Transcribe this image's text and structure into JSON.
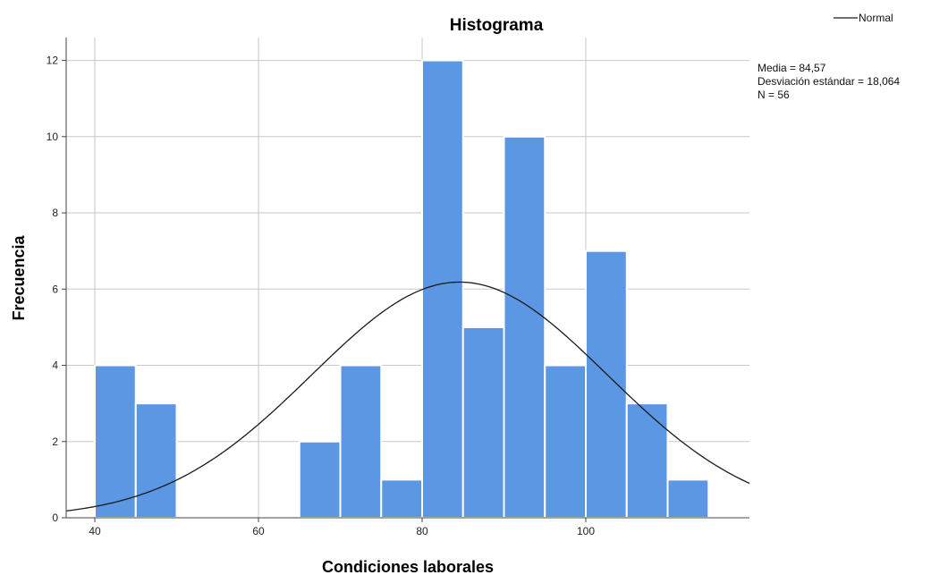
{
  "chart_data": {
    "type": "bar",
    "title": "Histograma",
    "xlabel": "Condiciones laborales",
    "ylabel": "Frecuencia",
    "bin_width": 5,
    "bins": [
      {
        "start": 40,
        "end": 45,
        "value": 4
      },
      {
        "start": 45,
        "end": 50,
        "value": 3
      },
      {
        "start": 50,
        "end": 55,
        "value": 0
      },
      {
        "start": 55,
        "end": 60,
        "value": 0
      },
      {
        "start": 60,
        "end": 65,
        "value": 0
      },
      {
        "start": 65,
        "end": 70,
        "value": 2
      },
      {
        "start": 70,
        "end": 75,
        "value": 4
      },
      {
        "start": 75,
        "end": 80,
        "value": 1
      },
      {
        "start": 80,
        "end": 85,
        "value": 12
      },
      {
        "start": 85,
        "end": 90,
        "value": 5
      },
      {
        "start": 90,
        "end": 95,
        "value": 10
      },
      {
        "start": 95,
        "end": 100,
        "value": 4
      },
      {
        "start": 100,
        "end": 105,
        "value": 7
      },
      {
        "start": 105,
        "end": 110,
        "value": 3
      },
      {
        "start": 110,
        "end": 115,
        "value": 1
      }
    ],
    "xlim": [
      36.5,
      120
    ],
    "ylim": [
      0,
      12.6
    ],
    "x_ticks": [
      40,
      60,
      80,
      100
    ],
    "y_ticks": [
      0,
      2,
      4,
      6,
      8,
      10,
      12
    ],
    "normal_curve": {
      "mean": 84.57,
      "sd": 18.064,
      "n": 56
    },
    "grid": true,
    "legend": {
      "position": "top-right",
      "entries": [
        "Normal"
      ]
    },
    "stats_lines": [
      "Media = 84,57",
      "Desviación estándar = 18,064",
      "N = 56"
    ],
    "colors": {
      "bar": "#5b97e3",
      "bar_edge": "#ffffff",
      "curve": "#1a1a1a",
      "grid": "#c8c8c8",
      "axis": "#444444"
    }
  }
}
